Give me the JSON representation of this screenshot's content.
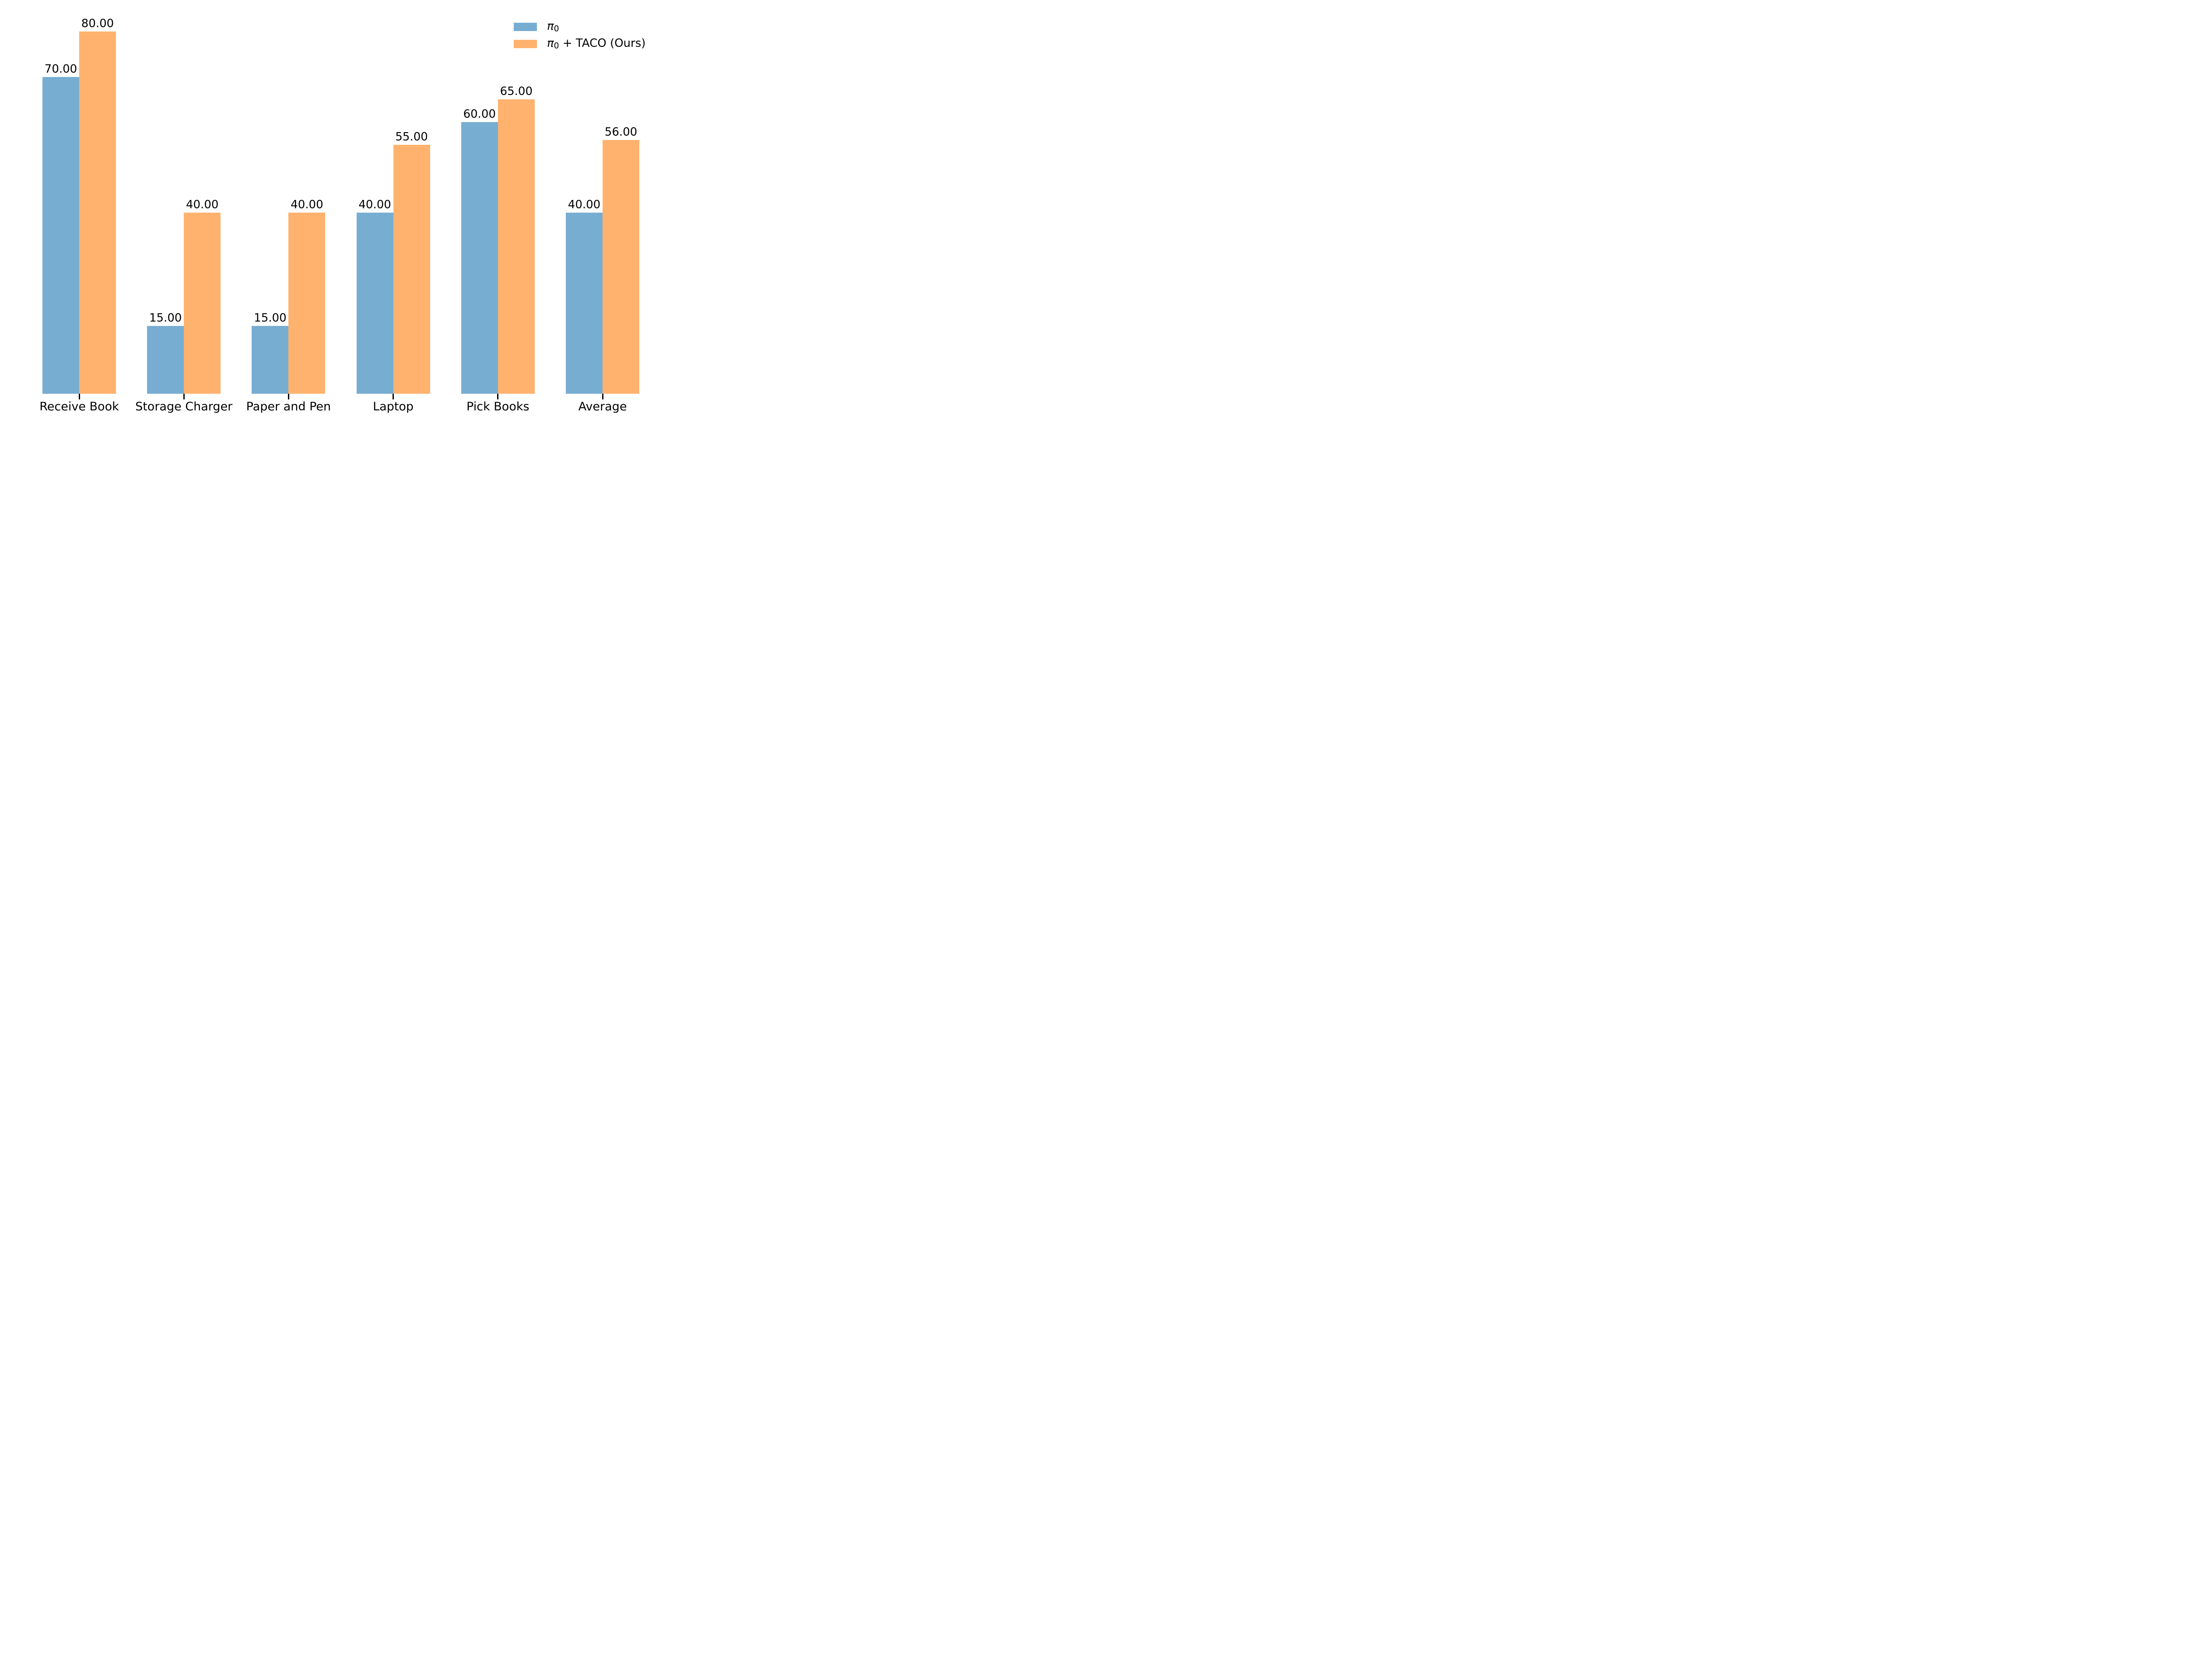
{
  "figure": {
    "background": "#ffffff"
  },
  "chart_data": {
    "type": "bar",
    "title": "",
    "xlabel": "",
    "ylabel": "",
    "categories": [
      "Receive Book",
      "Storage Charger",
      "Paper and Pen",
      "Laptop",
      "Pick Books",
      "Average"
    ],
    "series": [
      {
        "name": "π₀",
        "color": "#78ADD2",
        "values": [
          70.0,
          15.0,
          15.0,
          40.0,
          60.0,
          40.0
        ]
      },
      {
        "name": "π₀ + TACO (Ours)",
        "color": "#FFB26E",
        "values": [
          80.0,
          40.0,
          40.0,
          55.0,
          65.0,
          56.0
        ]
      }
    ],
    "value_labels": [
      [
        "70.00",
        "15.00",
        "15.00",
        "40.00",
        "60.00",
        "40.00"
      ],
      [
        "80.00",
        "40.00",
        "40.00",
        "55.00",
        "65.00",
        "56.00"
      ]
    ],
    "ylim": [
      0,
      87
    ],
    "grid": false,
    "y_axis_visible": false,
    "spines_visible": false,
    "legend_position": "upper right",
    "tick_color": "#000000",
    "text_color": "#000000"
  },
  "legend": {
    "items": [
      {
        "prefix": "π",
        "sub": "0",
        "rest": ""
      },
      {
        "prefix": "π",
        "sub": "0",
        "rest": " + TACO (Ours)"
      }
    ]
  }
}
